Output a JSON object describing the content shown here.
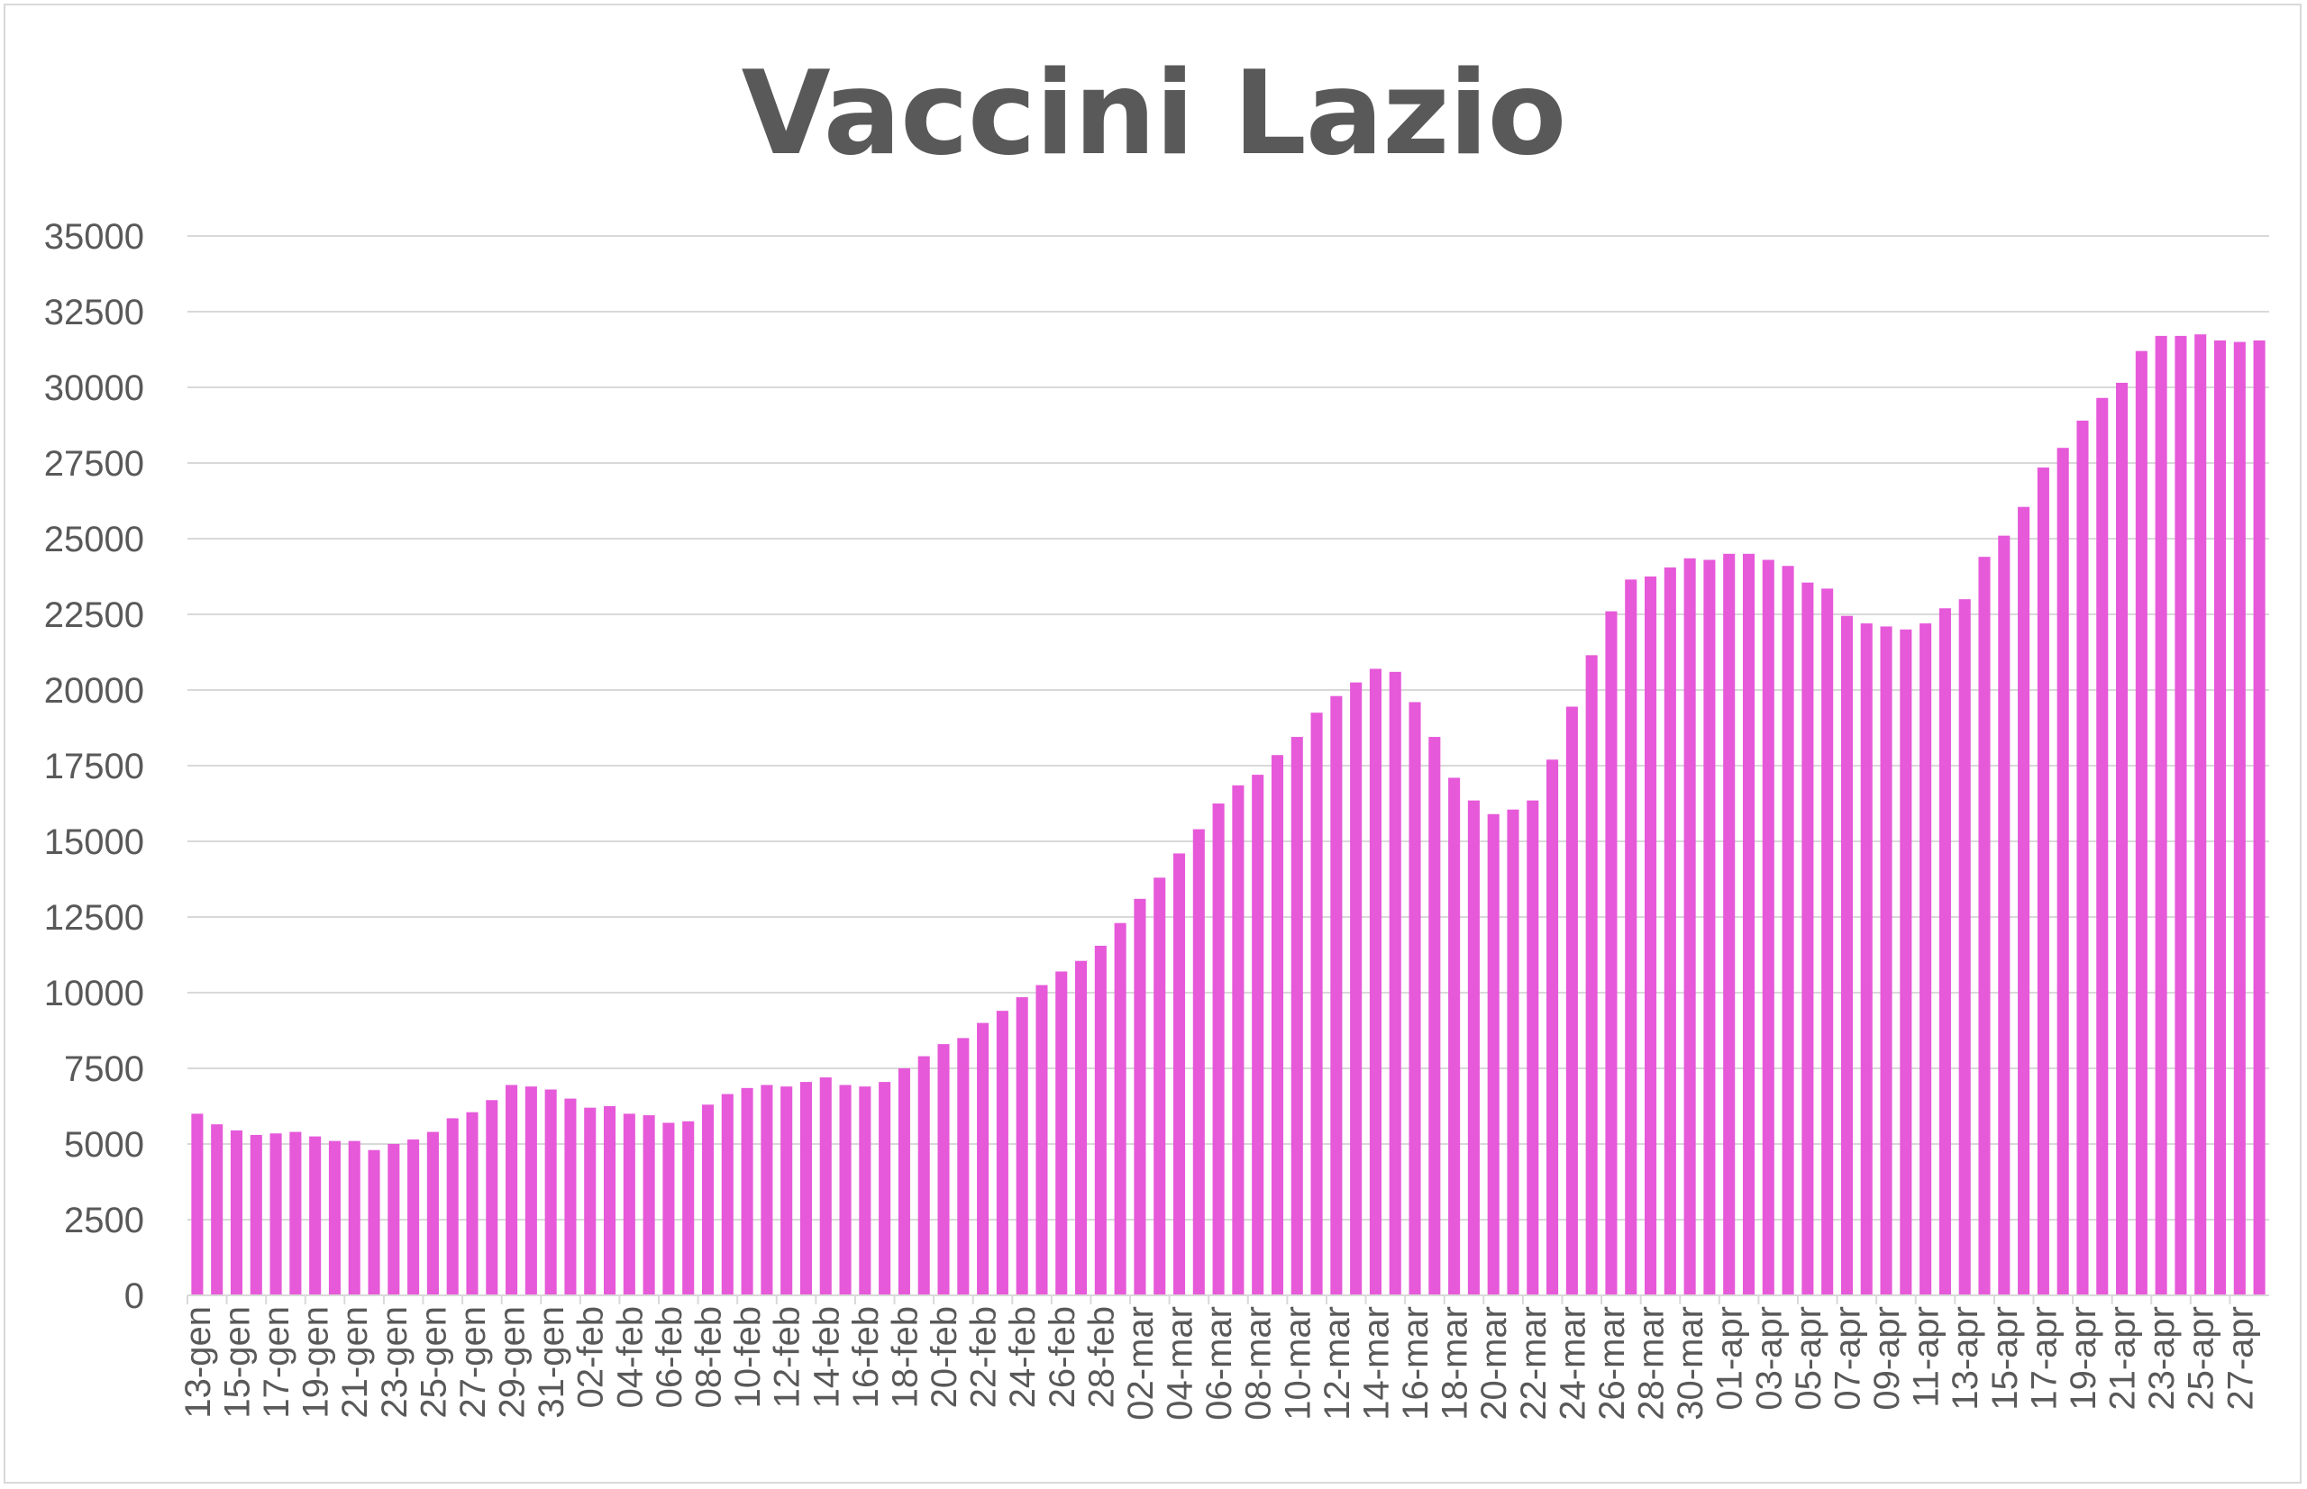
{
  "chart_data": {
    "type": "bar",
    "title": "Vaccini Lazio",
    "xlabel": "",
    "ylabel": "",
    "ylim": [
      0,
      35000
    ],
    "yticks": [
      0,
      2500,
      5000,
      7500,
      10000,
      12500,
      15000,
      17500,
      20000,
      22500,
      25000,
      27500,
      30000,
      32500,
      35000
    ],
    "grid": true,
    "bar_color": "#E659D9",
    "categories": [
      "13-gen",
      "14-gen",
      "15-gen",
      "16-gen",
      "17-gen",
      "18-gen",
      "19-gen",
      "20-gen",
      "21-gen",
      "22-gen",
      "23-gen",
      "24-gen",
      "25-gen",
      "26-gen",
      "27-gen",
      "28-gen",
      "29-gen",
      "30-gen",
      "31-gen",
      "01-feb",
      "02-feb",
      "03-feb",
      "04-feb",
      "05-feb",
      "06-feb",
      "07-feb",
      "08-feb",
      "09-feb",
      "10-feb",
      "11-feb",
      "12-feb",
      "13-feb",
      "14-feb",
      "15-feb",
      "16-feb",
      "17-feb",
      "18-feb",
      "19-feb",
      "20-feb",
      "21-feb",
      "22-feb",
      "23-feb",
      "24-feb",
      "25-feb",
      "26-feb",
      "27-feb",
      "28-feb",
      "01-mar",
      "02-mar",
      "03-mar",
      "04-mar",
      "05-mar",
      "06-mar",
      "07-mar",
      "08-mar",
      "09-mar",
      "10-mar",
      "11-mar",
      "12-mar",
      "13-mar",
      "14-mar",
      "15-mar",
      "16-mar",
      "17-mar",
      "18-mar",
      "19-mar",
      "20-mar",
      "21-mar",
      "22-mar",
      "23-mar",
      "24-mar",
      "25-mar",
      "26-mar",
      "27-mar",
      "28-mar",
      "29-mar",
      "30-mar",
      "31-mar",
      "01-apr",
      "02-apr",
      "03-apr",
      "04-apr",
      "05-apr",
      "06-apr",
      "07-apr",
      "08-apr",
      "09-apr",
      "10-apr",
      "11-apr",
      "12-apr",
      "13-apr",
      "14-apr",
      "15-apr",
      "16-apr",
      "17-apr",
      "18-apr",
      "19-apr",
      "20-apr",
      "21-apr",
      "22-apr",
      "23-apr",
      "24-apr",
      "25-apr",
      "26-apr",
      "27-apr",
      "28-apr"
    ],
    "labeled_ticks": [
      "13-gen",
      "15-gen",
      "17-gen",
      "19-gen",
      "21-gen",
      "23-gen",
      "25-gen",
      "27-gen",
      "29-gen",
      "31-gen",
      "02-feb",
      "04-feb",
      "06-feb",
      "08-feb",
      "10-feb",
      "12-feb",
      "14-feb",
      "16-feb",
      "18-feb",
      "20-feb",
      "22-feb",
      "24-feb",
      "26-feb",
      "28-feb",
      "02-mar",
      "04-mar",
      "06-mar",
      "08-mar",
      "10-mar",
      "12-mar",
      "14-mar",
      "16-mar",
      "18-mar",
      "20-mar",
      "22-mar",
      "24-mar",
      "26-mar",
      "28-mar",
      "30-mar",
      "01-apr",
      "03-apr",
      "05-apr",
      "07-apr",
      "09-apr",
      "11-apr",
      "13-apr",
      "15-apr",
      "17-apr",
      "19-apr",
      "21-apr",
      "23-apr",
      "25-apr",
      "27-apr"
    ],
    "values": [
      6000,
      5650,
      5450,
      5300,
      5350,
      5400,
      5250,
      5100,
      5100,
      4800,
      5000,
      5150,
      5400,
      5850,
      6050,
      6450,
      6950,
      6900,
      6800,
      6500,
      6200,
      6250,
      6000,
      5950,
      5700,
      5750,
      6300,
      6650,
      6850,
      6950,
      6900,
      7050,
      7200,
      6950,
      6900,
      7050,
      7500,
      7900,
      8300,
      8500,
      9000,
      9400,
      9850,
      10250,
      10700,
      11050,
      11550,
      12300,
      13100,
      13800,
      14600,
      15400,
      16250,
      16850,
      17200,
      17850,
      18450,
      19250,
      19800,
      20250,
      20700,
      20600,
      19600,
      18450,
      17100,
      16350,
      15900,
      16050,
      16350,
      17700,
      19450,
      21150,
      22600,
      23650,
      23750,
      24050,
      24350,
      24300,
      24500,
      24500,
      24300,
      24100,
      23550,
      23350,
      22450,
      22200,
      22100,
      22000,
      22200,
      22700,
      23000,
      24400,
      25100,
      26050,
      27350,
      28000,
      28900,
      29650,
      30150,
      31200,
      31700,
      31700,
      31750,
      31550,
      31500,
      31550
    ]
  }
}
